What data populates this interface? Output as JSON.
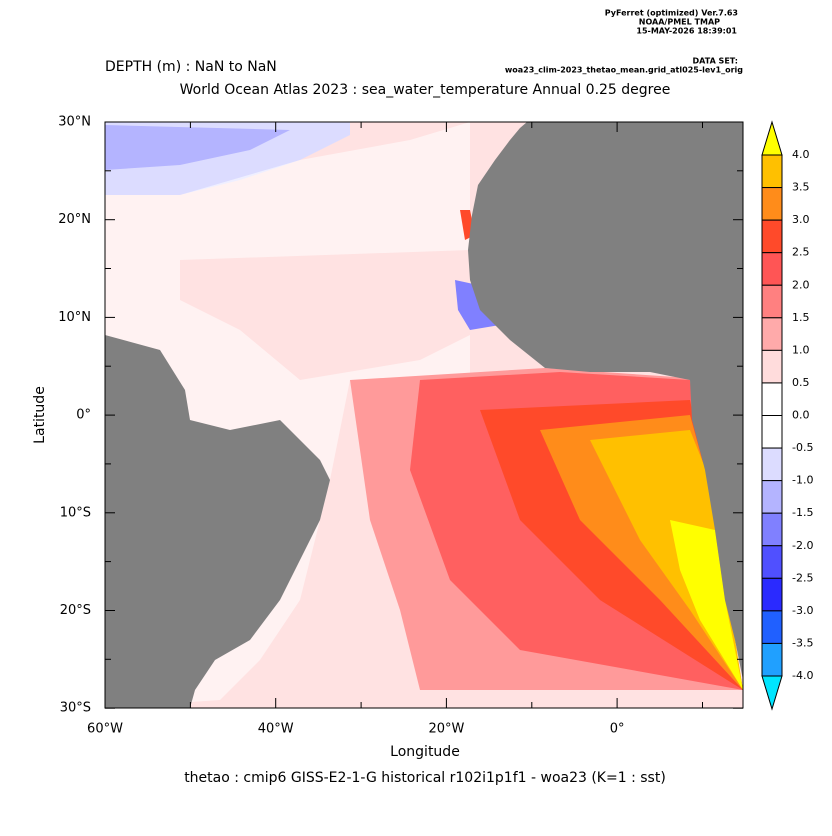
{
  "header": {
    "software": "PyFerret (optimized) Ver.7.63",
    "lab": "NOAA/PMEL TMAP",
    "timestamp": "15-MAY-2026 18:39:01",
    "dataset_label": "DATA SET:",
    "dataset": "woa23_clim-2023_thetao_mean.grid_atl025-lev1_orig"
  },
  "depth": "DEPTH (m) : NaN to NaN",
  "title": "World Ocean Atlas 2023 : sea_water_temperature Annual  0.25 degree",
  "x_axis": {
    "label": "Longitude",
    "ticks": [
      "60°W",
      "40°W",
      "20°W",
      "0°"
    ]
  },
  "y_axis": {
    "label": "Latitude",
    "ticks": [
      "30°N",
      "20°N",
      "10°N",
      "0°",
      "10°S",
      "20°S",
      "30°S"
    ]
  },
  "colorbar": {
    "labels": [
      "4.0",
      "3.5",
      "3.0",
      "2.5",
      "2.0",
      "1.5",
      "1.0",
      "0.5",
      "0.0",
      "-0.5",
      "-1.0",
      "-1.5",
      "-2.0",
      "-2.5",
      "-3.0",
      "-3.5",
      "-4.0"
    ],
    "colors": [
      "#ffff00",
      "#ffc000",
      "#ff8c1a",
      "#ff4a2a",
      "#ff5555",
      "#ff8080",
      "#ffaaaa",
      "#ffdcdc",
      "#ffffff",
      "#ffffff",
      "#dcdcff",
      "#b4b4ff",
      "#8080ff",
      "#5050ff",
      "#2a2aff",
      "#2060ff",
      "#20a0ff",
      "#00e5ff"
    ]
  },
  "caption": "thetao : cmip6 GISS-E2-1-G historical r102i1p1f1 - woa23  (K=1 : sst)"
}
